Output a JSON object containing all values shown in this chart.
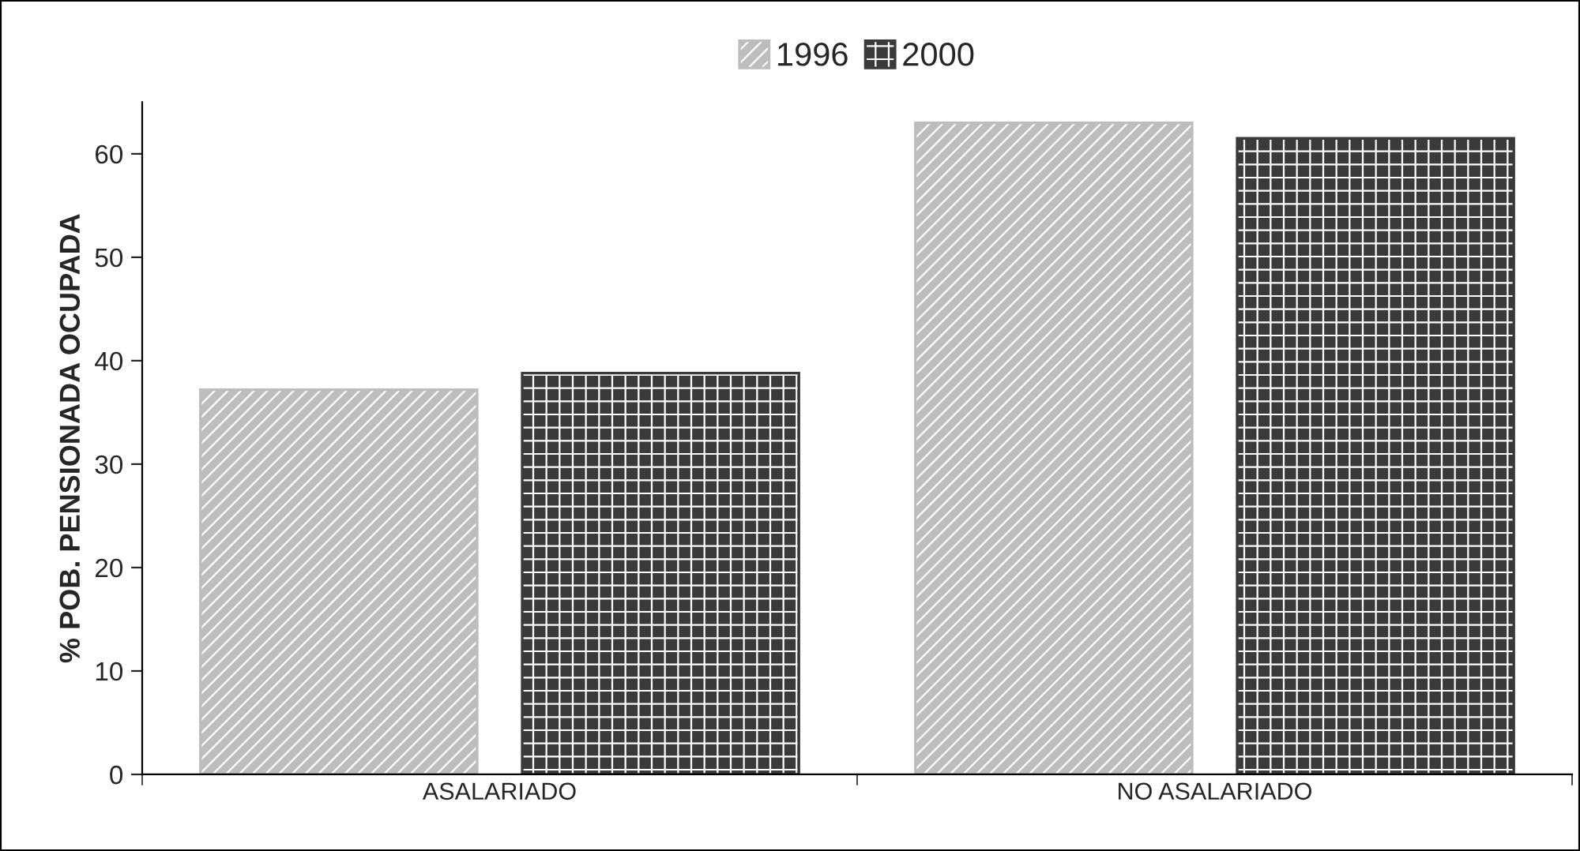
{
  "chart_data": {
    "type": "bar",
    "ylabel": "% POB. PENSIONADA OCUPADA",
    "categories": [
      "ASALARIADO",
      "NO ASALARIADO"
    ],
    "series": [
      {
        "name": "1996",
        "color": "#bdbdbd",
        "values": [
          37.2,
          63.0
        ]
      },
      {
        "name": "2000",
        "color": "#3a3a3a",
        "values": [
          38.8,
          61.5
        ]
      }
    ],
    "ylim": [
      0,
      65
    ],
    "yticks": [
      0,
      10,
      20,
      30,
      40,
      50,
      60
    ],
    "grid": false,
    "legend": "top"
  }
}
